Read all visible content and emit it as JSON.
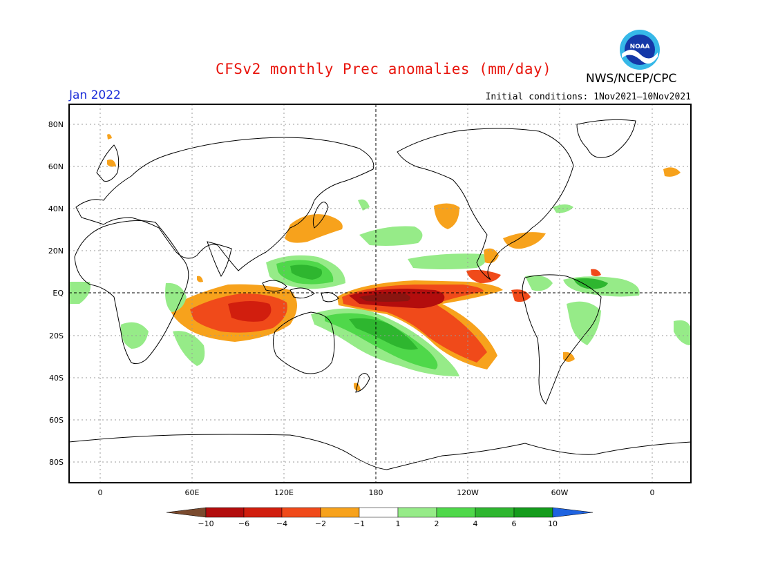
{
  "header": {
    "title": "CFSv2 monthly Prec anomalies (mm/day)",
    "agency": "NWS/NCEP/CPC",
    "month": "Jan 2022",
    "initial_conditions": "Initial conditions: 1Nov2021–10Nov2021",
    "logo_text": "NOAA"
  },
  "map": {
    "lon_ticks": [
      "0",
      "60E",
      "120E",
      "180",
      "120W",
      "60W",
      "0"
    ],
    "lat_ticks": [
      "80N",
      "60N",
      "40N",
      "20N",
      "EQ",
      "20S",
      "40S",
      "60S",
      "80S"
    ],
    "colors": {
      "dry_extreme": "#8b1a12",
      "dry_strong": "#e03c1c",
      "dry_moderate": "#f3a21f",
      "wet_light": "#98ec8a",
      "wet_moderate": "#2fbf3a",
      "wet_strong": "#128a1e"
    }
  },
  "colorbar": {
    "labels": [
      "−10",
      "−6",
      "−4",
      "−2",
      "−1",
      "1",
      "2",
      "4",
      "6",
      "10"
    ],
    "colors": [
      "#7a4a2e",
      "#b30d0d",
      "#d11e0e",
      "#f04a1a",
      "#f7a21c",
      "#ffffff",
      "#96eb88",
      "#4fd84a",
      "#2eb62f",
      "#159c1c",
      "#1f63e0"
    ]
  }
}
